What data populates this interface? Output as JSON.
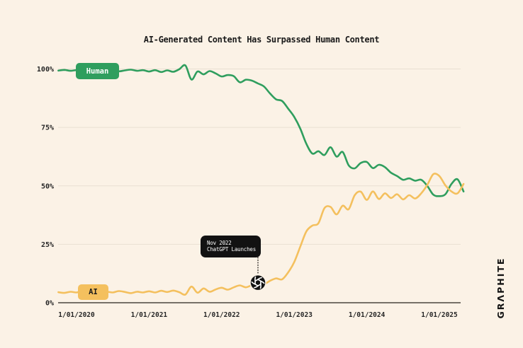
{
  "title": "AI-Generated Content Has Surpassed Human Content",
  "brand": {
    "wordmark": "GRΛPHITE"
  },
  "annotation": {
    "line1": "Nov 2022",
    "line2": "ChatGPT Launches",
    "icon": "openai-logo",
    "anchor_month": "2022-07",
    "anchor_series": "AI"
  },
  "colors": {
    "background": "#fbf2e6",
    "grid": "#e9e0d2",
    "axis": "#4a463f",
    "text": "#262626",
    "tooltip_bg": "#121212",
    "tooltip_text": "#ffffff",
    "human": "#2f9e5e",
    "ai": "#f4c05e"
  },
  "chart_data": {
    "type": "line",
    "title": "AI-Generated Content Has Surpassed Human Content",
    "xlabel": "",
    "ylabel": "",
    "ylim": [
      0,
      100
    ],
    "grid": true,
    "x_ticks": [
      "1/01/2020",
      "1/01/2021",
      "1/01/2022",
      "1/01/2023",
      "1/01/2024",
      "1/01/2025"
    ],
    "y_ticks": [
      "100%",
      "75%",
      "50%",
      "25%",
      "0%"
    ],
    "y_tick_values": [
      100,
      75,
      50,
      25,
      0
    ],
    "x": [
      "2019-10",
      "2019-11",
      "2019-12",
      "2020-01",
      "2020-02",
      "2020-03",
      "2020-04",
      "2020-05",
      "2020-06",
      "2020-07",
      "2020-08",
      "2020-09",
      "2020-10",
      "2020-11",
      "2020-12",
      "2021-01",
      "2021-02",
      "2021-03",
      "2021-04",
      "2021-05",
      "2021-06",
      "2021-07",
      "2021-08",
      "2021-09",
      "2021-10",
      "2021-11",
      "2021-12",
      "2022-01",
      "2022-02",
      "2022-03",
      "2022-04",
      "2022-05",
      "2022-06",
      "2022-07",
      "2022-08",
      "2022-09",
      "2022-10",
      "2022-11",
      "2022-12",
      "2023-01",
      "2023-02",
      "2023-03",
      "2023-04",
      "2023-05",
      "2023-06",
      "2023-07",
      "2023-08",
      "2023-09",
      "2023-10",
      "2023-11",
      "2023-12",
      "2024-01",
      "2024-02",
      "2024-03",
      "2024-04",
      "2024-05",
      "2024-06",
      "2024-07",
      "2024-08",
      "2024-09",
      "2024-10",
      "2024-11",
      "2024-12",
      "2025-01",
      "2025-02",
      "2025-03",
      "2025-04",
      "2025-05"
    ],
    "series": [
      {
        "name": "Human",
        "color": "#2f9e5e",
        "values": [
          99.3,
          99.6,
          99.2,
          99.5,
          99.1,
          99.6,
          99.3,
          99.7,
          99.2,
          99.6,
          99.0,
          99.4,
          99.7,
          99.2,
          99.5,
          98.9,
          99.5,
          98.7,
          99.4,
          98.8,
          99.9,
          101.5,
          95.5,
          98.9,
          97.7,
          99.1,
          98.1,
          96.8,
          97.4,
          96.9,
          94.3,
          95.4,
          95.0,
          93.8,
          92.5,
          89.5,
          87.0,
          86.3,
          83.0,
          79.5,
          74.5,
          68.0,
          63.8,
          64.8,
          63.2,
          66.5,
          62.5,
          64.5,
          58.8,
          57.5,
          59.8,
          60.2,
          57.6,
          59.0,
          58.0,
          55.6,
          54.2,
          52.6,
          53.2,
          52.2,
          52.6,
          50.0,
          46.2,
          45.6,
          46.4,
          50.8,
          52.8,
          47.6
        ]
      },
      {
        "name": "AI",
        "color": "#f4c05e",
        "values": [
          4.5,
          4.2,
          4.7,
          4.4,
          4.9,
          4.4,
          4.8,
          4.3,
          4.7,
          4.4,
          5.0,
          4.6,
          4.1,
          4.7,
          4.4,
          4.9,
          4.4,
          5.1,
          4.6,
          5.2,
          4.5,
          3.5,
          6.9,
          4.3,
          6.1,
          4.7,
          5.7,
          6.4,
          5.6,
          6.6,
          7.4,
          6.6,
          7.6,
          8.6,
          8.0,
          9.4,
          10.4,
          10.0,
          13.0,
          17.4,
          24.0,
          30.5,
          33.0,
          34.0,
          40.5,
          41.0,
          37.8,
          41.5,
          40.0,
          46.0,
          47.5,
          44.0,
          47.6,
          44.4,
          46.8,
          44.8,
          46.4,
          44.2,
          46.0,
          44.6,
          46.8,
          50.4,
          55.0,
          54.2,
          50.2,
          47.6,
          46.8,
          50.8
        ]
      }
    ]
  }
}
